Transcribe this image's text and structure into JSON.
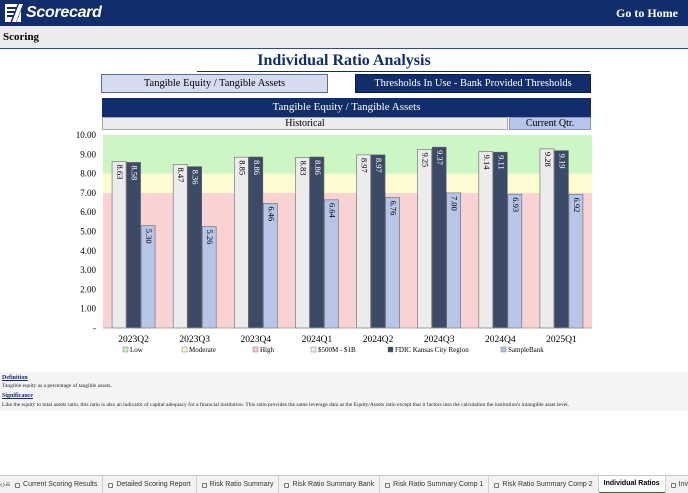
{
  "header": {
    "app_name": "Scorecard",
    "go_home": "Go to Home"
  },
  "scoring_label": "Scoring",
  "page_title": "Individual Ratio Analysis",
  "metric_selector": "Tangible Equity / Tangible Assets",
  "threshold_selector": "Thresholds In Use - Bank Provided Thresholds",
  "chart_header": "Tangible Equity / Tangible Assets",
  "historical_label": "Historical",
  "current_label": "Current Qtr.",
  "chart_data": {
    "type": "bar",
    "categories": [
      "2023Q2",
      "2023Q3",
      "2023Q4",
      "2024Q1",
      "2024Q2",
      "2024Q3",
      "2024Q4",
      "2025Q1"
    ],
    "series": [
      {
        "name": "$500M - $1B",
        "values": [
          8.63,
          8.47,
          8.85,
          8.83,
          8.97,
          9.25,
          9.14,
          9.28
        ],
        "color": "#ececec"
      },
      {
        "name": "FDIC Kansas City Region",
        "values": [
          8.58,
          8.36,
          8.86,
          8.86,
          8.97,
          9.37,
          9.11,
          9.19
        ],
        "color": "#3b4a66"
      },
      {
        "name": "SampleBank",
        "values": [
          5.3,
          5.26,
          6.46,
          6.64,
          6.76,
          7.0,
          6.93,
          6.92
        ],
        "color": "#b7c5e8"
      }
    ],
    "value_labels": [
      [
        "8.63",
        "8.47",
        "8.85",
        "8.83",
        "8.97",
        "9.25",
        "9.14",
        "9.28"
      ],
      [
        "8.58",
        "8.36",
        "8.86",
        "8.86",
        "8.97",
        "9.37",
        "9.11",
        "9.19"
      ],
      [
        "5.30",
        "5.26",
        "6.46",
        "6.64",
        "6.76",
        "7.00",
        "6.93",
        "6.92"
      ]
    ],
    "y_ticks": [
      "10.00",
      "9.00",
      "8.00",
      "7.00",
      "6.00",
      "5.00",
      "4.00",
      "3.00",
      "2.00",
      "1.00",
      "-"
    ],
    "ylim": [
      0,
      10
    ],
    "bands": [
      {
        "name": "Low",
        "from": 0,
        "to": 7,
        "color": "#f9d3d3"
      },
      {
        "name": "Moderate",
        "from": 7,
        "to": 8,
        "color": "#fdfbd0"
      },
      {
        "name": "High",
        "from": 8,
        "to": 10,
        "color": "#ccf6c4"
      }
    ],
    "legend": [
      {
        "label": "Low",
        "color": "#c9f2c0"
      },
      {
        "label": "Moderate",
        "color": "#fbf7c4"
      },
      {
        "label": "High",
        "color": "#f7c9c9"
      },
      {
        "label": "$500M - $1B",
        "color": "#ececec"
      },
      {
        "label": "FDIC Kansas City Region",
        "color": "#3b4a66"
      },
      {
        "label": "SampleBank",
        "color": "#b7c5e8"
      }
    ],
    "legend_position": "bottom"
  },
  "definition": {
    "def_title": "Definition",
    "def_text": "Tangible equity as a percentage of tangible assets.",
    "sig_title": "Significance",
    "sig_text": "Like the equity to total assets ratio, this ratio is also an indicator of capital adequacy for a financial institution.  This ratio provides the same leverage data as the Equity/Assets ratio except that it factors into the calculation the institution's intangible asset level."
  },
  "tabs": [
    {
      "label": "Current Scoring Results",
      "locked": true
    },
    {
      "label": "Detailed Scoring Report",
      "locked": true
    },
    {
      "label": "Risk Ratio Summary",
      "locked": true
    },
    {
      "label": "Risk Ratio Summary Bank",
      "locked": true
    },
    {
      "label": "Risk Ratio Summary Comp 1",
      "locked": true
    },
    {
      "label": "Risk Ratio Summary Comp 2",
      "locked": true
    },
    {
      "label": "Individual Ratios",
      "locked": false,
      "active": true
    },
    {
      "label": "Investment Conc",
      "locked": true
    }
  ]
}
